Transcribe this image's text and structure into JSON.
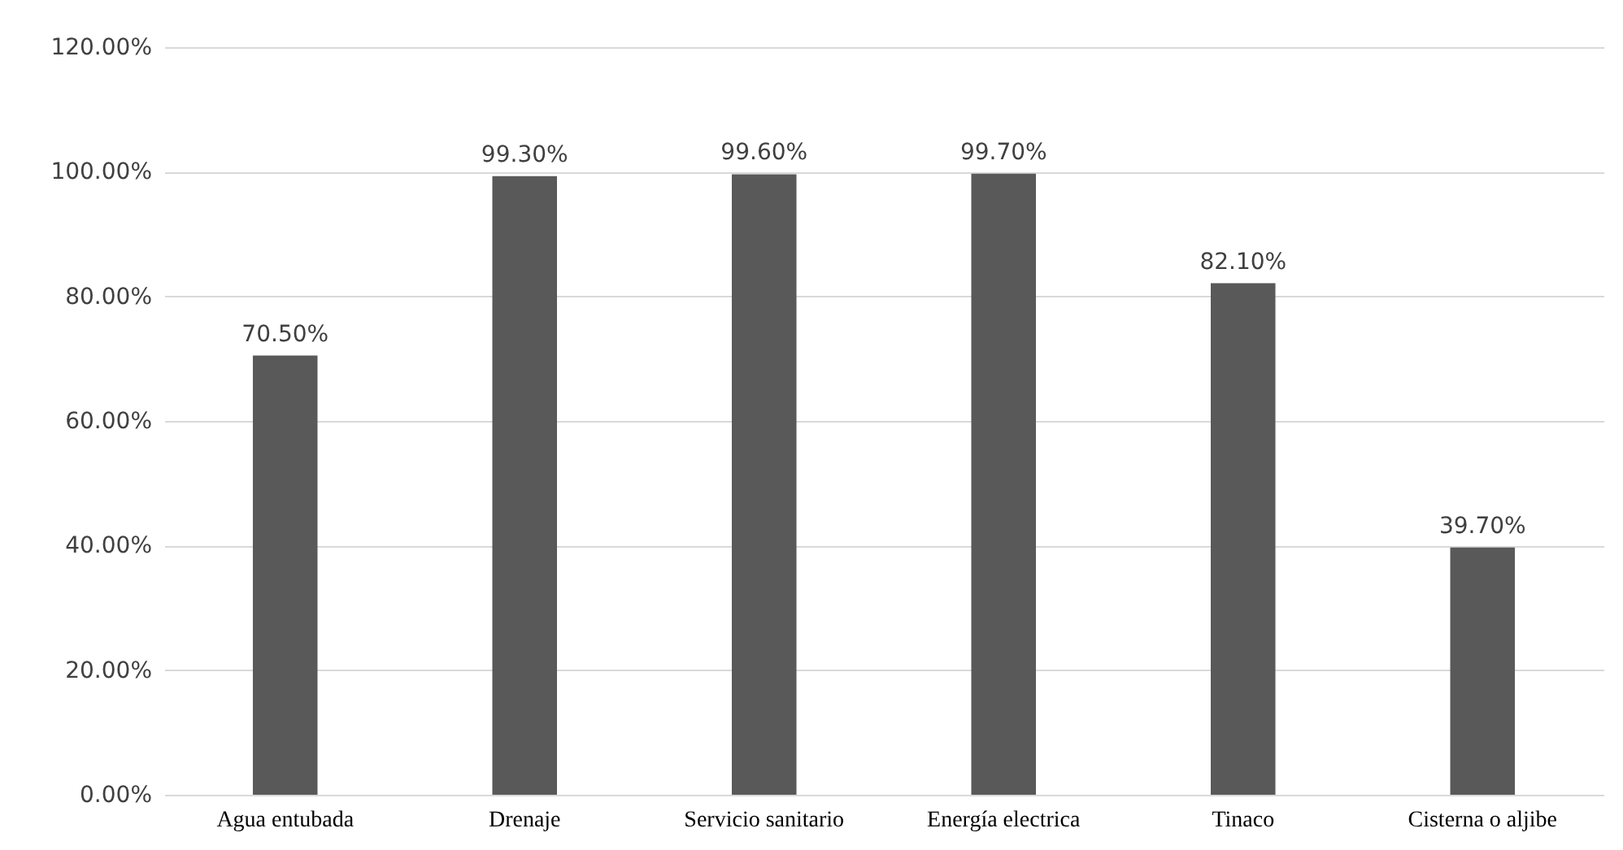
{
  "chart_data": {
    "type": "bar",
    "categories": [
      "Agua entubada",
      "Drenaje",
      "Servicio sanitario",
      "Energía electrica",
      "Tinaco",
      "Cisterna o aljibe"
    ],
    "values": [
      70.5,
      99.3,
      99.6,
      99.7,
      82.1,
      39.7
    ],
    "value_labels": [
      "70.50%",
      "99.30%",
      "99.60%",
      "99.70%",
      "82.10%",
      "39.70%"
    ],
    "color": "#595959",
    "ylim": [
      0,
      120
    ],
    "yticks": [
      {
        "value": 0,
        "label": "0.00%"
      },
      {
        "value": 20,
        "label": "20.00%"
      },
      {
        "value": 40,
        "label": "40.00%"
      },
      {
        "value": 60,
        "label": "60.00%"
      },
      {
        "value": 80,
        "label": "80.00%"
      },
      {
        "value": 100,
        "label": "100.00%"
      },
      {
        "value": 120,
        "label": "120.00%"
      }
    ],
    "grid": "y"
  }
}
